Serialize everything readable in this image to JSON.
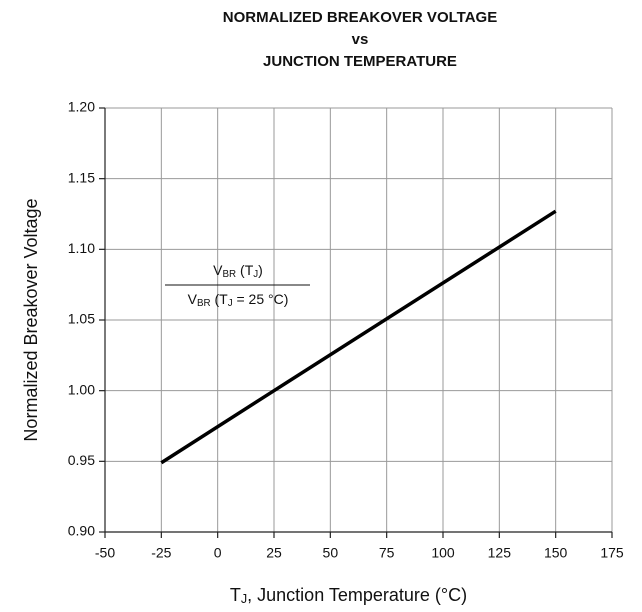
{
  "chart_data": {
    "type": "line",
    "title": [
      "NORMALIZED BREAKOVER VOLTAGE",
      "vs",
      "JUNCTION TEMPERATURE"
    ],
    "x_label": [
      "T",
      "J",
      ", Junction Temperature (°C)"
    ],
    "y_label": "Normalized Breakover Voltage",
    "annotation": {
      "numerator": [
        "V",
        "BR",
        " (T",
        "J",
        ")"
      ],
      "denominator": [
        "V",
        "BR",
        " (T",
        "J",
        " = 25 °C)"
      ]
    },
    "x": [
      -25,
      25,
      150
    ],
    "series": [
      {
        "color": "#000000",
        "values": [
          0.949,
          1.0,
          1.127
        ]
      }
    ],
    "xlim": [
      -50,
      175
    ],
    "xticks": [
      -50,
      -25,
      0,
      25,
      50,
      75,
      100,
      125,
      150,
      175
    ],
    "ylim": [
      0.9,
      1.2
    ],
    "yticks": [
      {
        "value": 0.9,
        "label": "0.90"
      },
      0.95,
      {
        "value": 1.0,
        "label": "1.00"
      },
      1.05,
      {
        "value": 1.1,
        "label": "1.10"
      },
      1.15,
      {
        "value": 1.2,
        "label": "1.20"
      }
    ],
    "grid": true
  }
}
